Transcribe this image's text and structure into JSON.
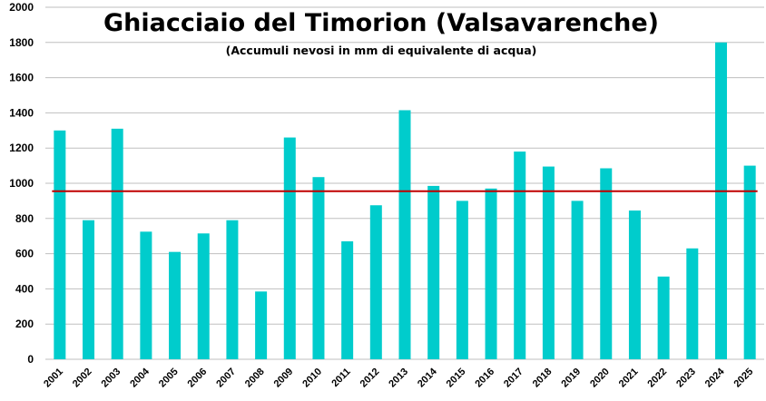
{
  "chart_data": {
    "type": "bar",
    "title": "Ghiacciaio del Timorion (Valsavarenche)",
    "subtitle": "(Accumuli nevosi in mm di equivalente di acqua)",
    "xlabel": "",
    "ylabel": "",
    "categories": [
      "2001",
      "2002",
      "2003",
      "2004",
      "2005",
      "2006",
      "2007",
      "2008",
      "2009",
      "2010",
      "2011",
      "2012",
      "2013",
      "2014",
      "2015",
      "2016",
      "2017",
      "2018",
      "2019",
      "2020",
      "2021",
      "2022",
      "2023",
      "2024",
      "2025"
    ],
    "values": [
      1300,
      790,
      1310,
      725,
      610,
      715,
      790,
      385,
      1260,
      1035,
      670,
      875,
      1415,
      985,
      900,
      970,
      1180,
      1095,
      900,
      1085,
      845,
      470,
      630,
      1800,
      1100
    ],
    "reference_line": 955,
    "ylim": [
      0,
      2000
    ],
    "yticks": [
      0,
      200,
      400,
      600,
      800,
      1000,
      1200,
      1400,
      1600,
      1800,
      2000
    ],
    "grid": true,
    "legend": "none",
    "colors": {
      "bar": "#00CCCC",
      "reference_line": "#C00000",
      "grid": "#BFBFBF"
    }
  }
}
